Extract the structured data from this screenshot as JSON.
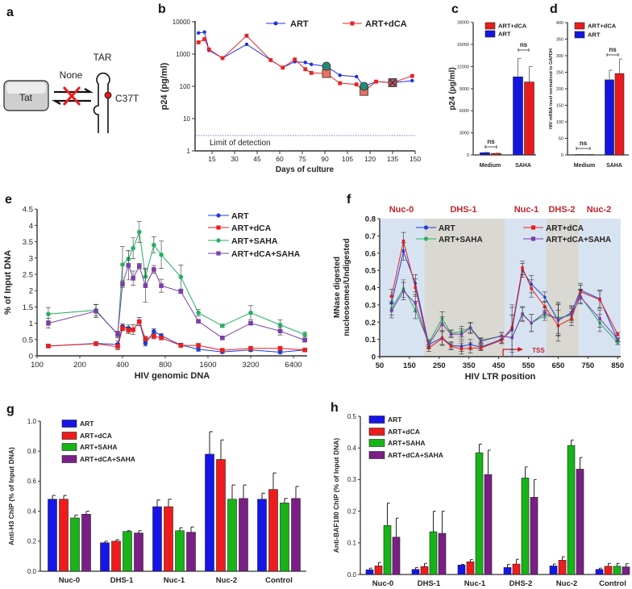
{
  "panel_labels": [
    "a",
    "b",
    "c",
    "d",
    "e",
    "f",
    "g",
    "h"
  ],
  "panel_a": {
    "protein": "Tat",
    "interaction": "None",
    "rna": "TAR",
    "mutation": "C37T"
  },
  "chart_data": [
    {
      "panel": "b",
      "type": "line",
      "title": "",
      "xlabel": "Days of culture",
      "ylabel": "p24 (pg/ml)",
      "yscale": "log",
      "ylim": [
        1,
        10000
      ],
      "yticks": [
        "1",
        "10",
        "100",
        "1000",
        "10000"
      ],
      "xlim": [
        3,
        150
      ],
      "xticks": [
        15,
        30,
        45,
        60,
        75,
        90,
        105,
        120,
        135,
        150
      ],
      "x": [
        6,
        10,
        13,
        22,
        38,
        54,
        62,
        70,
        77,
        81,
        91,
        100,
        111,
        116,
        124,
        135,
        148
      ],
      "series": [
        {
          "name": "ART",
          "color": "#1f2fe0",
          "marker": "circle",
          "values": [
            4500,
            4800,
            1300,
            750,
            2000,
            650,
            380,
            580,
            550,
            480,
            420,
            220,
            200,
            100,
            140,
            130,
            150
          ]
        },
        {
          "name": "ART+dCA",
          "color": "#e82222",
          "marker": "square",
          "values": [
            2300,
            2900,
            1400,
            750,
            3700,
            650,
            380,
            680,
            340,
            260,
            250,
            125,
            115,
            70,
            140,
            130,
            210
          ]
        }
      ],
      "highlight_days": [
        91,
        116,
        135
      ],
      "annotation": {
        "text": "Limit of detection",
        "value": 3
      },
      "legend": "top"
    },
    {
      "panel": "c",
      "type": "bar",
      "categories": [
        "Medium",
        "SAHA"
      ],
      "ylabel": "p24 (pg/ml)",
      "ylim": [
        0,
        18000
      ],
      "yticks": [
        "0",
        "3000",
        "6000",
        "9000",
        "12000",
        "15000",
        "18000"
      ],
      "series": [
        {
          "name": "ART",
          "color": "#1515e0",
          "values": [
            300,
            10600
          ],
          "err_top": [
            350,
            13100
          ]
        },
        {
          "name": "ART+dCA",
          "color": "#e81c1c",
          "values": [
            200,
            9900
          ],
          "err_top": [
            250,
            12000
          ]
        }
      ],
      "annotations": [
        "ns",
        "ns"
      ],
      "legend": "top-left"
    },
    {
      "panel": "d",
      "type": "bar",
      "categories": [
        "Medium",
        "SAHA"
      ],
      "ylabel": "HIV mRNA level normalized to GAPDH",
      "ylim": [
        0,
        400
      ],
      "yticks": [
        "0",
        "50",
        "100",
        "150",
        "200",
        "250",
        "300",
        "350",
        "400"
      ],
      "series": [
        {
          "name": "ART",
          "color": "#1515e0",
          "values": [
            1,
            227
          ],
          "err_top": [
            1,
            256
          ]
        },
        {
          "name": "ART+dCA",
          "color": "#e81c1c",
          "values": [
            1,
            246
          ],
          "err_top": [
            1,
            290
          ]
        }
      ],
      "annotations": [
        "ns",
        "ns"
      ],
      "legend": "top-left"
    },
    {
      "panel": "e",
      "type": "line",
      "xlabel": "HIV genomic DNA",
      "ylabel": "% of Input DNA",
      "xscale": "log2",
      "xlim": [
        100,
        8000
      ],
      "xticks": [
        "100",
        "200",
        "400",
        "800",
        "1600",
        "3200",
        "6400"
      ],
      "ylim": [
        0,
        4.5
      ],
      "yticks": [
        "0",
        "0.5",
        "1",
        "1.5",
        "2",
        "2.5",
        "3",
        "3.5",
        "4",
        "4.5"
      ],
      "x": [
        120,
        260,
        370,
        400,
        440,
        475,
        525,
        580,
        665,
        750,
        1030,
        1370,
        2020,
        3200,
        5160,
        7700
      ],
      "series": [
        {
          "name": "ART",
          "color": "#1f3fd8",
          "marker": "circle",
          "values": [
            0.3,
            0.38,
            0.35,
            0.9,
            0.85,
            0.8,
            1.05,
            0.38,
            0.75,
            0.62,
            0.33,
            0.2,
            0.12,
            0.18,
            0.11,
            0.18
          ],
          "err": [
            0.05,
            0.05,
            0.1,
            0.08,
            0.1,
            0.15,
            0.12,
            0.08,
            0.08,
            0.06,
            0.06,
            0.06,
            0.04,
            0.05,
            0.04,
            0.04
          ]
        },
        {
          "name": "ART+dCA",
          "color": "#e82020",
          "marker": "square",
          "values": [
            0.3,
            0.37,
            0.28,
            0.85,
            0.78,
            0.8,
            1.05,
            0.52,
            0.6,
            0.55,
            0.32,
            0.32,
            0.17,
            0.23,
            0.23,
            0.18
          ],
          "err": [
            0.05,
            0.05,
            0.1,
            0.08,
            0.1,
            0.15,
            0.12,
            0.08,
            0.08,
            0.06,
            0.06,
            0.06,
            0.04,
            0.05,
            0.04,
            0.04
          ]
        },
        {
          "name": "ART+SAHA",
          "color": "#25b060",
          "marker": "circle",
          "values": [
            1.28,
            1.4,
            0.65,
            2.8,
            2.97,
            3.3,
            3.8,
            2.43,
            3.4,
            3.1,
            2.42,
            1.32,
            0.92,
            1.32,
            0.95,
            0.65
          ],
          "err": [
            0.2,
            0.18,
            0.1,
            0.55,
            0.25,
            0.32,
            0.32,
            0.25,
            0.25,
            0.42,
            0.37,
            0.1,
            0.05,
            0.22,
            0.15,
            0.08
          ]
        },
        {
          "name": "ART+dCA+SAHA",
          "color": "#7b3fa8",
          "marker": "square",
          "values": [
            1.0,
            1.37,
            0.67,
            2.2,
            2.78,
            2.38,
            2.75,
            2.15,
            2.65,
            2.15,
            1.97,
            1.06,
            0.55,
            1.0,
            0.76,
            0.48
          ],
          "err": [
            0.15,
            0.2,
            0.08,
            0.1,
            0.45,
            0.22,
            0.08,
            0.5,
            0.12,
            0.2,
            0.05,
            0.05,
            0.05,
            0.05,
            0.12,
            0.05
          ]
        }
      ],
      "legend": "top-right"
    },
    {
      "panel": "f",
      "type": "line",
      "xlabel": "HIV LTR position",
      "ylabel": [
        "MNase digested",
        "nucleosomes/Undigested"
      ],
      "xlim": [
        50,
        860
      ],
      "xticks": [
        "50",
        "150",
        "250",
        "350",
        "450",
        "550",
        "650",
        "750",
        "850"
      ],
      "ylim": [
        0,
        0.8
      ],
      "yticks": [
        "0",
        "0.1",
        "0.2",
        "0.3",
        "0.4",
        "0.5",
        "0.6",
        "0.7",
        "0.8"
      ],
      "regions": [
        {
          "name": "Nuc-0",
          "from": 50,
          "to": 200,
          "kind": "nucleosome"
        },
        {
          "name": "DHS-1",
          "from": 200,
          "to": 470,
          "kind": "dhs"
        },
        {
          "name": "Nuc-1",
          "from": 470,
          "to": 610,
          "kind": "nucleosome"
        },
        {
          "name": "DHS-2",
          "from": 610,
          "to": 720,
          "kind": "dhs"
        },
        {
          "name": "Nuc-2",
          "from": 720,
          "to": 860,
          "kind": "nucleosome"
        }
      ],
      "tss": {
        "label": "TSS",
        "position": 465
      },
      "x": [
        90,
        130,
        170,
        215,
        260,
        290,
        325,
        355,
        390,
        460,
        495,
        530,
        560,
        605,
        650,
        695,
        725,
        790,
        850
      ],
      "series": [
        {
          "name": "ART",
          "color": "#1f3fd8",
          "marker": "circle",
          "values": [
            0.31,
            0.61,
            0.425,
            0.07,
            0.11,
            0.065,
            0.06,
            0.07,
            0.055,
            0.1,
            0.155,
            0.5,
            0.42,
            0.345,
            0.21,
            0.255,
            0.385,
            0.335,
            0.095
          ],
          "err": [
            0.04,
            0.05,
            0.05,
            0.02,
            0.04,
            0.02,
            0.03,
            0.03,
            0.015,
            0.02,
            0.13,
            0.04,
            0.05,
            0.03,
            0.09,
            0.04,
            0.04,
            0.05,
            0.01
          ]
        },
        {
          "name": "ART+SAHA",
          "color": "#25b060",
          "marker": "circle",
          "values": [
            0.28,
            0.395,
            0.27,
            0.08,
            0.22,
            0.135,
            0.145,
            0.17,
            0.095,
            0.12,
            0.11,
            0.25,
            0.195,
            0.24,
            0.225,
            0.24,
            0.35,
            0.195,
            0.08
          ],
          "err": [
            0.04,
            0.05,
            0.05,
            0.02,
            0.04,
            0.02,
            0.03,
            0.03,
            0.015,
            0.02,
            0.13,
            0.04,
            0.05,
            0.03,
            0.09,
            0.04,
            0.04,
            0.05,
            0.01
          ]
        },
        {
          "name": "ART+dCA",
          "color": "#e82020",
          "marker": "square",
          "values": [
            0.35,
            0.67,
            0.4,
            0.05,
            0.105,
            0.06,
            0.045,
            0.05,
            0.05,
            0.095,
            0.17,
            0.515,
            0.395,
            0.29,
            0.18,
            0.22,
            0.375,
            0.33,
            0.13
          ],
          "err": [
            0.04,
            0.05,
            0.05,
            0.02,
            0.04,
            0.02,
            0.03,
            0.03,
            0.015,
            0.02,
            0.13,
            0.04,
            0.05,
            0.03,
            0.09,
            0.04,
            0.04,
            0.05,
            0.01
          ]
        },
        {
          "name": "ART+dCA+SAHA",
          "color": "#7b3fa8",
          "marker": "square",
          "values": [
            0.265,
            0.38,
            0.31,
            0.07,
            0.19,
            0.13,
            0.13,
            0.165,
            0.09,
            0.12,
            0.11,
            0.245,
            0.195,
            0.255,
            0.215,
            0.25,
            0.345,
            0.22,
            0.1
          ],
          "err": [
            0.04,
            0.05,
            0.05,
            0.02,
            0.04,
            0.02,
            0.03,
            0.03,
            0.015,
            0.02,
            0.13,
            0.04,
            0.05,
            0.03,
            0.09,
            0.04,
            0.04,
            0.05,
            0.01
          ]
        }
      ],
      "legend": "top"
    },
    {
      "panel": "g",
      "type": "bar",
      "categories": [
        "Nuc-0",
        "DHS-1",
        "Nuc-1",
        "Nuc-2",
        "Control"
      ],
      "ylabel": "Anti-H3 ChIP (% of Input DNA)",
      "ylim": [
        0,
        1.0
      ],
      "yticks": [
        "0.0",
        "0.2",
        "0.4",
        "0.6",
        "0.8",
        "1.0"
      ],
      "series": [
        {
          "name": "ART",
          "color": "#1515e8",
          "values": [
            0.48,
            0.19,
            0.43,
            0.78,
            0.48
          ],
          "err_top": [
            0.505,
            0.2,
            0.475,
            0.93,
            0.52
          ]
        },
        {
          "name": "ART+dCA",
          "color": "#ee1c1c",
          "values": [
            0.48,
            0.2,
            0.43,
            0.745,
            0.545
          ],
          "err_top": [
            0.505,
            0.21,
            0.48,
            0.875,
            0.655
          ]
        },
        {
          "name": "ART+SAHA",
          "color": "#17b417",
          "values": [
            0.355,
            0.265,
            0.27,
            0.48,
            0.455
          ],
          "err_top": [
            0.375,
            0.27,
            0.29,
            0.575,
            0.485
          ]
        },
        {
          "name": "ART+dCA+SAHA",
          "color": "#7a1f85",
          "values": [
            0.38,
            0.255,
            0.26,
            0.485,
            0.485
          ],
          "err_top": [
            0.4,
            0.27,
            0.295,
            0.575,
            0.565
          ]
        }
      ],
      "legend": "top-left"
    },
    {
      "panel": "h",
      "type": "bar",
      "categories": [
        "Nuc-0",
        "DHS-1",
        "Nuc-1",
        "DHS-2",
        "Nuc-2",
        "Control"
      ],
      "ylabel": "Anti-BAF180 ChIP (% of Input DNA)",
      "ylim": [
        0,
        0.5
      ],
      "yticks": [
        "0.0",
        "0.1",
        "0.2",
        "0.3",
        "0.4",
        "0.5"
      ],
      "series": [
        {
          "name": "ART",
          "color": "#1515e8",
          "values": [
            0.015,
            0.016,
            0.03,
            0.022,
            0.027,
            0.016
          ],
          "err_top": [
            0.02,
            0.022,
            0.032,
            0.032,
            0.033,
            0.02
          ]
        },
        {
          "name": "ART+dCA",
          "color": "#ee1c1c",
          "values": [
            0.027,
            0.025,
            0.04,
            0.033,
            0.045,
            0.026
          ],
          "err_top": [
            0.038,
            0.035,
            0.047,
            0.048,
            0.056,
            0.035
          ]
        },
        {
          "name": "ART+SAHA",
          "color": "#17b417",
          "values": [
            0.155,
            0.135,
            0.385,
            0.305,
            0.408,
            0.026
          ],
          "err_top": [
            0.226,
            0.2,
            0.412,
            0.34,
            0.425,
            0.035
          ]
        },
        {
          "name": "ART+dCA+SAHA",
          "color": "#7a1f85",
          "values": [
            0.118,
            0.13,
            0.316,
            0.244,
            0.333,
            0.024
          ],
          "err_top": [
            0.178,
            0.2,
            0.393,
            0.3,
            0.37,
            0.034
          ]
        }
      ],
      "legend": "top-left"
    }
  ]
}
